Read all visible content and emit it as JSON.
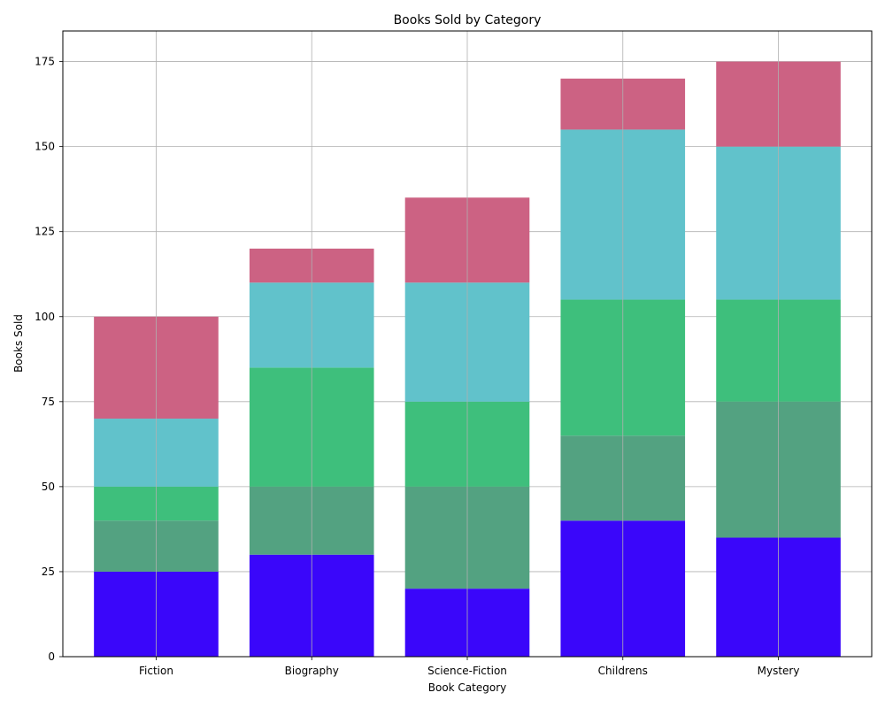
{
  "chart_data": {
    "type": "bar",
    "stacked": true,
    "title": "Books Sold by Category",
    "xlabel": "Book Category",
    "ylabel": "Books Sold",
    "categories": [
      "Fiction",
      "Biography",
      "Science-Fiction",
      "Childrens",
      "Mystery"
    ],
    "ylim": [
      0,
      184
    ],
    "yticks": [
      0,
      25,
      50,
      75,
      100,
      125,
      150,
      175
    ],
    "grid": true,
    "series": [
      {
        "color": "#3a06fa",
        "values": [
          25,
          30,
          20,
          40,
          35
        ]
      },
      {
        "color": "#53a281",
        "values": [
          15,
          20,
          30,
          25,
          40
        ]
      },
      {
        "color": "#3ebf7c",
        "values": [
          10,
          35,
          25,
          40,
          30
        ]
      },
      {
        "color": "#61c2cb",
        "values": [
          20,
          25,
          35,
          50,
          45
        ]
      },
      {
        "color": "#cc6283",
        "values": [
          30,
          10,
          25,
          15,
          25
        ]
      }
    ]
  }
}
